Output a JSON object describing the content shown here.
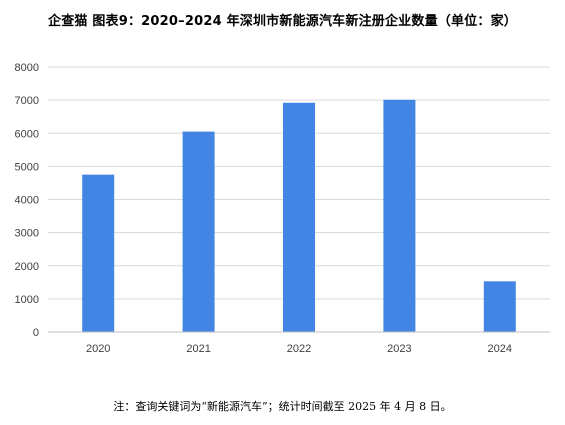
{
  "chart_data": {
    "type": "bar",
    "title": "企查猫  图表9：2020–2024 年深圳市新能源汽车新注册企业数量（单位：家）",
    "categories": [
      "2020",
      "2021",
      "2022",
      "2023",
      "2024"
    ],
    "values": [
      4750,
      6050,
      6920,
      7010,
      1530
    ],
    "ylim": [
      0,
      8000
    ],
    "yticks": [
      0,
      1000,
      2000,
      3000,
      4000,
      5000,
      6000,
      7000,
      8000
    ],
    "grid": true,
    "bar_color": "#4285e4",
    "grid_color": "#d9d9d9",
    "axis_color": "#bfbfbf"
  },
  "footer": {
    "note": "注：查询关键词为“新能源汽车”；统计时间截至 2025 年 4 月 8 日。"
  }
}
